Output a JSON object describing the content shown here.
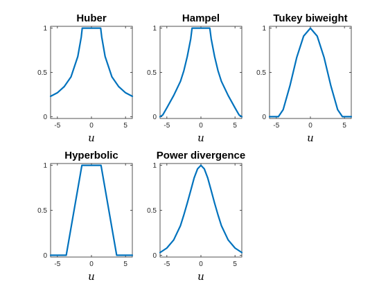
{
  "chart_data": [
    {
      "type": "line",
      "title": "Huber",
      "xlabel": "u",
      "xlim": [
        -6,
        6
      ],
      "ylim": [
        -0.02,
        1.02
      ],
      "xticks": [
        -5,
        0,
        5
      ],
      "xtick_labels": [
        "-5",
        "0",
        "5"
      ],
      "yticks": [
        0,
        0.5,
        1
      ],
      "ytick_labels": [
        "0",
        "0.5",
        "1"
      ],
      "color": "#0072BD",
      "x": [
        -6,
        -5,
        -4,
        -3,
        -2,
        -1.5,
        -1.35,
        0,
        1.35,
        1.5,
        2,
        3,
        4,
        5,
        6
      ],
      "y": [
        0.23,
        0.27,
        0.34,
        0.45,
        0.68,
        0.9,
        1,
        1,
        1,
        0.9,
        0.68,
        0.45,
        0.34,
        0.27,
        0.23
      ]
    },
    {
      "type": "line",
      "title": "Hampel",
      "xlabel": "u",
      "xlim": [
        -6,
        6
      ],
      "ylim": [
        -0.02,
        1.02
      ],
      "xticks": [
        -5,
        0,
        5
      ],
      "xtick_labels": [
        "-5",
        "0",
        "5"
      ],
      "yticks": [
        0,
        0.5,
        1
      ],
      "ytick_labels": [
        "0",
        "0.5",
        "1"
      ],
      "color": "#0072BD",
      "x": [
        -6,
        -5.6,
        -5,
        -4,
        -3,
        -2.5,
        -2,
        -1.5,
        -1.3,
        0,
        1.3,
        1.5,
        2,
        2.5,
        3,
        4,
        5,
        5.6,
        6
      ],
      "y": [
        0,
        0.02,
        0.1,
        0.24,
        0.4,
        0.52,
        0.68,
        0.88,
        1,
        1,
        1,
        0.88,
        0.68,
        0.52,
        0.4,
        0.24,
        0.1,
        0.02,
        0
      ]
    },
    {
      "type": "line",
      "title": "Tukey biweight",
      "xlabel": "u",
      "xlim": [
        -6,
        6
      ],
      "ylim": [
        -0.02,
        1.02
      ],
      "xticks": [
        -5,
        0,
        5
      ],
      "xtick_labels": [
        "-5",
        "0",
        "5"
      ],
      "yticks": [
        0,
        0.5,
        1
      ],
      "ytick_labels": [
        "0",
        "0.5",
        "1"
      ],
      "color": "#0072BD",
      "x": [
        -6,
        -4.7,
        -4,
        -3,
        -2,
        -1,
        0,
        1,
        2,
        3,
        4,
        4.7,
        6
      ],
      "y": [
        0,
        0,
        0.08,
        0.35,
        0.67,
        0.91,
        1,
        0.91,
        0.67,
        0.35,
        0.08,
        0,
        0
      ]
    },
    {
      "type": "line",
      "title": "Hyperbolic",
      "xlabel": "u",
      "xlim": [
        -6,
        6
      ],
      "ylim": [
        -0.02,
        1.02
      ],
      "xticks": [
        -5,
        0,
        5
      ],
      "xtick_labels": [
        "-5",
        "0",
        "5"
      ],
      "yticks": [
        0,
        0.5,
        1
      ],
      "ytick_labels": [
        "0",
        "0.5",
        "1"
      ],
      "color": "#0072BD",
      "x": [
        -6,
        -3.7,
        -1.4,
        1.4,
        3.7,
        6
      ],
      "y": [
        0,
        0,
        1,
        1,
        0,
        0
      ]
    },
    {
      "type": "line",
      "title": "Power divergence",
      "xlabel": "u",
      "xlim": [
        -6,
        6
      ],
      "ylim": [
        -0.02,
        1.02
      ],
      "xticks": [
        -5,
        0,
        5
      ],
      "xtick_labels": [
        "-5",
        "0",
        "5"
      ],
      "yticks": [
        0,
        0.5,
        1
      ],
      "ytick_labels": [
        "0",
        "0.5",
        "1"
      ],
      "color": "#0072BD",
      "x": [
        -6,
        -5,
        -4,
        -3,
        -2.5,
        -2,
        -1.5,
        -1,
        -0.5,
        0,
        0.5,
        1,
        1.5,
        2,
        2.5,
        3,
        4,
        5,
        6
      ],
      "y": [
        0.03,
        0.08,
        0.17,
        0.33,
        0.45,
        0.58,
        0.72,
        0.86,
        0.96,
        1,
        0.96,
        0.86,
        0.72,
        0.58,
        0.45,
        0.33,
        0.17,
        0.08,
        0.03
      ]
    }
  ]
}
